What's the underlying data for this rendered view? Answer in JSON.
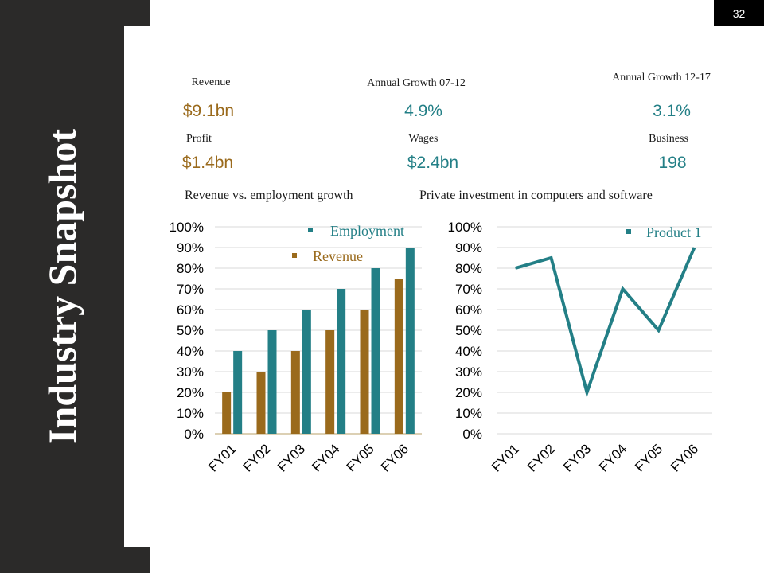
{
  "slide": {
    "title": "Industry Snapshot",
    "page_number": "32"
  },
  "stats": {
    "revenue": {
      "label": "Revenue",
      "value": "$9.1bn"
    },
    "growth_07_12": {
      "label": "Annual Growth 07-12",
      "value": "4.9%"
    },
    "growth_12_17": {
      "label": "Annual Growth 12-17",
      "value": "3.1%"
    },
    "profit": {
      "label": "Profit",
      "value": "$1.4bn"
    },
    "wages": {
      "label": "Wages",
      "value": "$2.4bn"
    },
    "business": {
      "label": "Business",
      "value": "198"
    }
  },
  "colors": {
    "brown": "#9a6a1c",
    "teal": "#237f86",
    "dark": "#2b2a29"
  },
  "chart_data": [
    {
      "type": "bar",
      "title": "Revenue vs. employment growth",
      "categories": [
        "FY01",
        "FY02",
        "FY03",
        "FY04",
        "FY05",
        "FY06"
      ],
      "series": [
        {
          "name": "Revenue",
          "color": "#9a6a1c",
          "values": [
            20,
            30,
            40,
            50,
            60,
            75
          ]
        },
        {
          "name": "Employment",
          "color": "#237f86",
          "values": [
            40,
            50,
            60,
            70,
            80,
            90
          ]
        }
      ],
      "yticks": [
        "0%",
        "10%",
        "20%",
        "30%",
        "40%",
        "50%",
        "60%",
        "70%",
        "80%",
        "90%",
        "100%"
      ],
      "ylim": [
        0,
        100
      ],
      "grid": true,
      "legend": "top-right"
    },
    {
      "type": "line",
      "title": "Private investment in computers and software",
      "categories": [
        "FY01",
        "FY02",
        "FY03",
        "FY04",
        "FY05",
        "FY06"
      ],
      "series": [
        {
          "name": "Product 1",
          "color": "#237f86",
          "values": [
            80,
            85,
            20,
            70,
            50,
            90
          ]
        }
      ],
      "yticks": [
        "0%",
        "10%",
        "20%",
        "30%",
        "40%",
        "50%",
        "60%",
        "70%",
        "80%",
        "90%",
        "100%"
      ],
      "ylim": [
        0,
        100
      ],
      "grid": true,
      "legend": "top-right"
    }
  ]
}
